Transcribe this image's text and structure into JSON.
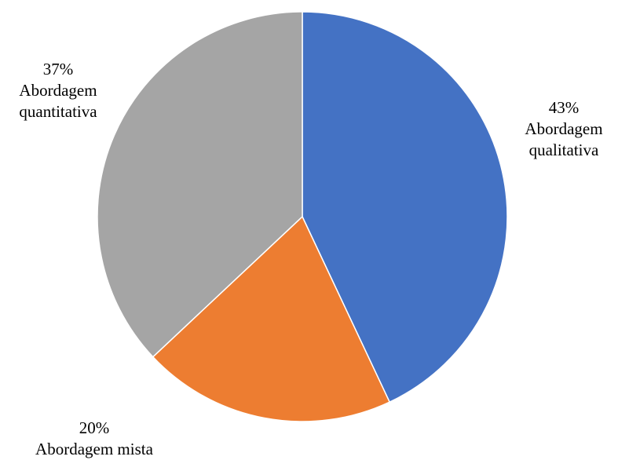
{
  "chart_data": {
    "type": "pie",
    "slices": [
      {
        "label": "Abordagem qualitativa",
        "value": 43,
        "value_label": "43%",
        "color": "#4472C4"
      },
      {
        "label": "Abordagem mista",
        "value": 20,
        "value_label": "20%",
        "color": "#ED7D31"
      },
      {
        "label": "Abordagem quantitativa",
        "value": 37,
        "value_label": "37%",
        "color": "#A5A5A5"
      }
    ],
    "start": "12 o'clock",
    "direction": "clockwise",
    "legend": "none",
    "data_labels": "outside, percent above category name"
  }
}
